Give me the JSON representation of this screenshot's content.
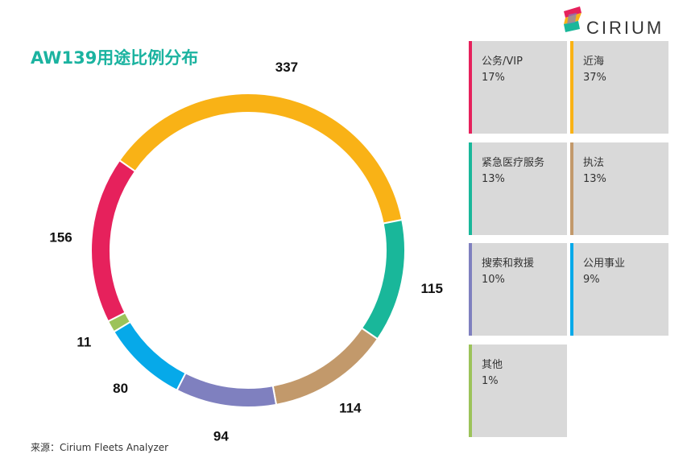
{
  "chart_data": {
    "type": "pie",
    "title": "AW139用途比例分布",
    "categories": [
      "公务/VIP",
      "近海",
      "紧急医疗服务",
      "执法",
      "搜索和救援",
      "公用事业",
      "其他"
    ],
    "values": [
      156,
      337,
      115,
      114,
      94,
      80,
      11
    ],
    "percent_labels": [
      "17%",
      "37%",
      "13%",
      "13%",
      "10%",
      "9%",
      "1%"
    ],
    "colors": [
      "#e6215c",
      "#f9b216",
      "#19b79a",
      "#c2996b",
      "#7f80bf",
      "#06a9e9",
      "#9cc35a"
    ],
    "legend_position": "right"
  },
  "brand": {
    "name": "CIRIUM"
  },
  "source": "来源：Cirium Fleets Analyzer"
}
